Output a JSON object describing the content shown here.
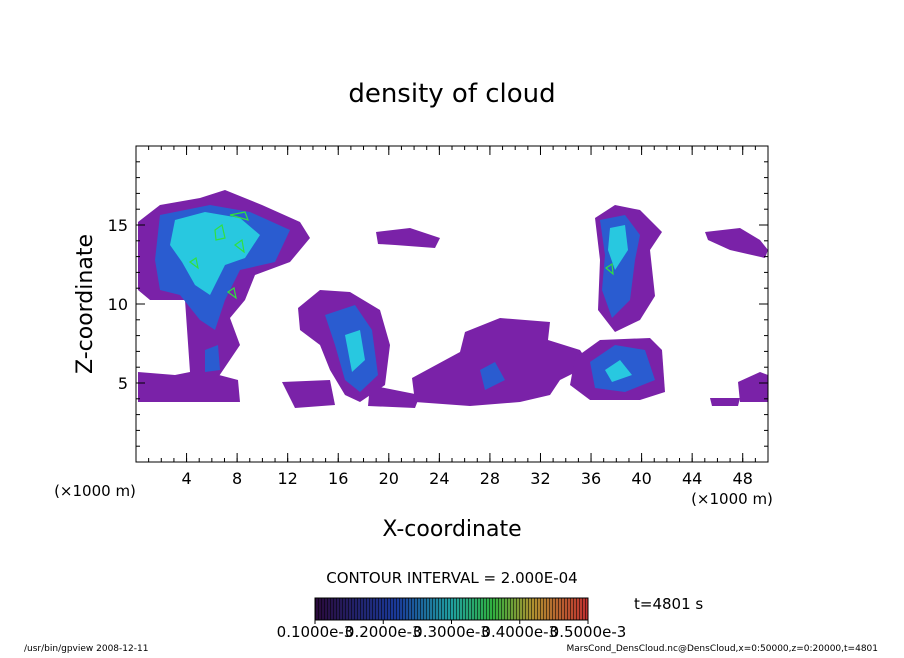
{
  "chart_data": {
    "type": "contour",
    "title": "density of cloud",
    "x_label": "X-coordinate",
    "y_label": "Z-coordinate",
    "x_unit": "(×1000 m)",
    "y_unit": "(×1000 m)",
    "xlim": [
      0,
      50
    ],
    "xticks": [
      4,
      8,
      12,
      16,
      20,
      24,
      28,
      32,
      36,
      40,
      44,
      48
    ],
    "ylim": [
      0,
      20
    ],
    "yticks": [
      5,
      10,
      15
    ],
    "contour_interval": "CONTOUR INTERVAL = 2.000E-04",
    "time": "t=4801 s",
    "colorbar": {
      "lim": [
        0.0001,
        0.0005
      ],
      "ticks": [
        {
          "value": 0.0001,
          "label": "0.1000e-3"
        },
        {
          "value": 0.0002,
          "label": "0.2000e-3"
        },
        {
          "value": 0.0003,
          "label": "0.3000e-3"
        },
        {
          "value": 0.0004,
          "label": "0.4000e-3"
        },
        {
          "value": 0.0005,
          "label": "0.5000e-3"
        }
      ]
    },
    "footer_left": "/usr/bin/gpview   2008-12-11",
    "footer_right": "MarsCond_DensCloud.nc@DensCloud,x=0:50000,z=0:20000,t=4801"
  }
}
